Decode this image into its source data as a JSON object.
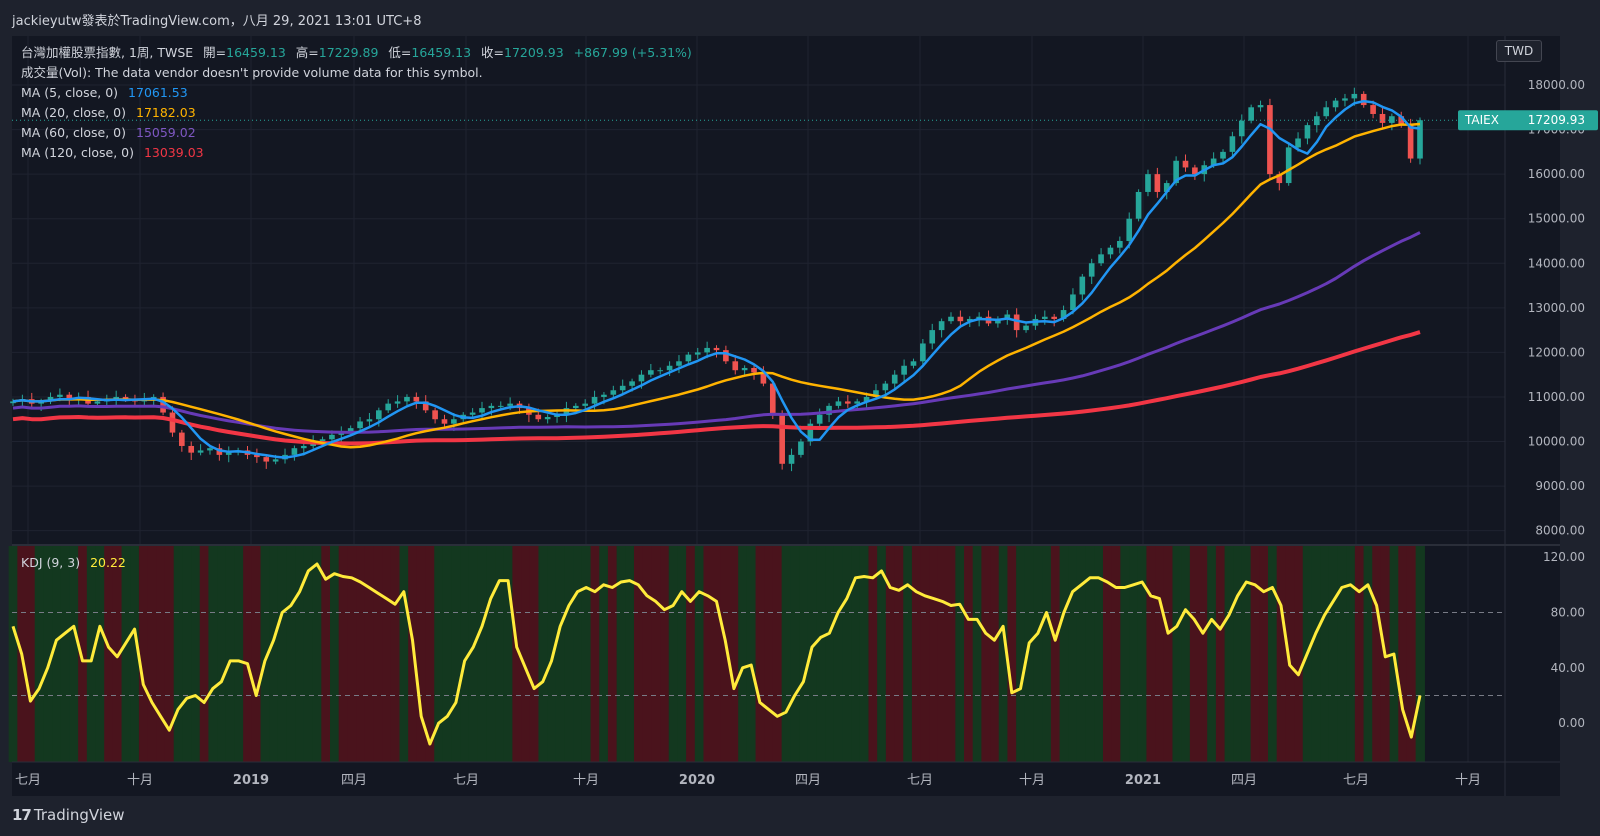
{
  "header": {
    "author": "jackieyutw發表於TradingView.com，八月 29, 2021 13:01 UTC+8"
  },
  "legend": {
    "symbol": "台灣加權股票指數, 1周, TWSE",
    "ohlc_prefix": "開=",
    "open": "16459.13",
    "high_prefix": "高=",
    "high": "17229.89",
    "low_prefix": "低=",
    "low": "16459.13",
    "close_prefix": "收=",
    "close": "17209.93",
    "change": "+867.99 (+5.31%)",
    "volume_note": "成交量(Vol): The data vendor doesn't provide volume data for this symbol.",
    "ma5_label": "MA (5, close, 0)",
    "ma5_value": "17061.53",
    "ma20_label": "MA (20, close, 0)",
    "ma20_value": "17182.03",
    "ma60_label": "MA (60, close, 0)",
    "ma60_value": "15059.02",
    "ma120_label": "MA (120, close, 0)",
    "ma120_value": "13039.03",
    "kdj_label": "KDJ (9, 3)",
    "kdj_value": "20.22"
  },
  "currency": "TWD",
  "price_tag": {
    "symbol": "TAIEX",
    "value": "17209.93"
  },
  "colors": {
    "up": "#26a69a",
    "down": "#ef5350",
    "ma5": "#2196f3",
    "ma20": "#ffb300",
    "ma60": "#673ab7",
    "ma120": "#f23645",
    "kdj": "#ffeb3b",
    "zone_green": "#13381f",
    "zone_red": "#4a131c"
  },
  "footer": {
    "brand": "TradingView"
  },
  "chart_data": [
    {
      "type": "candlestick",
      "title": "台灣加權股票指數, 1周, TWSE",
      "x_ticks": [
        "七月",
        "十月",
        "2019",
        "四月",
        "七月",
        "十月",
        "2020",
        "四月",
        "七月",
        "十月",
        "2021",
        "四月",
        "七月",
        "十月"
      ],
      "y_ticks": [
        "18000.00",
        "17000.00",
        "16000.00",
        "15000.00",
        "14000.00",
        "13000.00",
        "12000.00",
        "11000.00",
        "10000.00",
        "9000.00",
        "8000.00"
      ],
      "ylim": [
        7700,
        19100
      ],
      "grid": true,
      "approx_weekly_close": [
        10900,
        10950,
        10850,
        10900,
        11000,
        11050,
        10950,
        11000,
        10850,
        10900,
        10950,
        11000,
        10950,
        10900,
        10950,
        11000,
        10650,
        10200,
        9900,
        9750,
        9800,
        9850,
        9700,
        9750,
        9800,
        9700,
        9650,
        9550,
        9600,
        9700,
        9850,
        9900,
        10000,
        10050,
        10150,
        10200,
        10300,
        10450,
        10500,
        10700,
        10850,
        10900,
        11000,
        10900,
        10700,
        10500,
        10400,
        10500,
        10600,
        10650,
        10750,
        10800,
        10800,
        10850,
        10750,
        10600,
        10500,
        10550,
        10600,
        10750,
        10800,
        10850,
        11000,
        11050,
        11150,
        11250,
        11350,
        11500,
        11600,
        11600,
        11700,
        11800,
        11950,
        12000,
        12100,
        12050,
        11800,
        11600,
        11650,
        11550,
        11300,
        10600,
        9500,
        9700,
        10000,
        10400,
        10600,
        10800,
        10900,
        10850,
        10900,
        11000,
        11150,
        11300,
        11500,
        11700,
        11800,
        12200,
        12500,
        12700,
        12800,
        12700,
        12750,
        12800,
        12650,
        12750,
        12850,
        12500,
        12600,
        12750,
        12800,
        12750,
        12950,
        13300,
        13700,
        14000,
        14200,
        14350,
        14500,
        15000,
        15600,
        16000,
        15600,
        15800,
        16300,
        16150,
        16000,
        16200,
        16350,
        16500,
        16850,
        17200,
        17500,
        17550,
        16000,
        15800,
        16600,
        16800,
        17100,
        17300,
        17500,
        17650,
        17700,
        17800,
        17550,
        17350,
        17150,
        17300,
        17100,
        16350,
        17210
      ],
      "series": [
        {
          "name": "MA (5, close, 0)",
          "last": 17061.53
        },
        {
          "name": "MA (20, close, 0)",
          "last": 17182.03
        },
        {
          "name": "MA (60, close, 0)",
          "last": 15059.02
        },
        {
          "name": "MA (120, close, 0)",
          "last": 13039.03
        }
      ],
      "last_price_label": "TAIEX 17209.93"
    },
    {
      "type": "line",
      "title": "KDJ (9, 3)",
      "y_ticks": [
        "120.00",
        "80.00",
        "40.00",
        "0.00"
      ],
      "ylim": [
        -28,
        128
      ],
      "reference_lines": [
        80,
        20
      ],
      "last": 20.22,
      "approx_values": [
        70,
        50,
        16,
        25,
        40,
        60,
        65,
        70,
        45,
        45,
        70,
        55,
        48,
        58,
        68,
        28,
        15,
        5,
        -5,
        10,
        18,
        20,
        15,
        25,
        30,
        45,
        45,
        43,
        20,
        45,
        60,
        80,
        85,
        95,
        110,
        115,
        104,
        108,
        106,
        105,
        102,
        98,
        94,
        90,
        86,
        95,
        60,
        5,
        -15,
        0,
        5,
        15,
        45,
        55,
        70,
        90,
        103,
        103,
        55,
        40,
        25,
        30,
        45,
        70,
        85,
        95,
        98,
        95,
        100,
        98,
        102,
        103,
        100,
        92,
        88,
        82,
        85,
        95,
        88,
        95,
        92,
        88,
        60,
        25,
        40,
        42,
        15,
        10,
        5,
        8,
        20,
        30,
        55,
        62,
        65,
        80,
        90,
        105,
        106,
        105,
        110,
        98,
        96,
        100,
        95,
        92,
        90,
        88,
        85,
        86,
        75,
        75,
        65,
        60,
        70,
        22,
        25,
        58,
        65,
        80,
        60,
        80,
        95,
        100,
        105,
        105,
        102,
        98,
        98,
        100,
        102,
        92,
        90,
        65,
        70,
        82,
        75,
        65,
        75,
        68,
        78,
        92,
        102,
        100,
        95,
        98,
        85,
        42,
        35,
        50,
        65,
        78,
        88,
        98,
        100,
        95,
        100,
        85,
        48,
        50,
        10,
        -10,
        20
      ]
    }
  ]
}
